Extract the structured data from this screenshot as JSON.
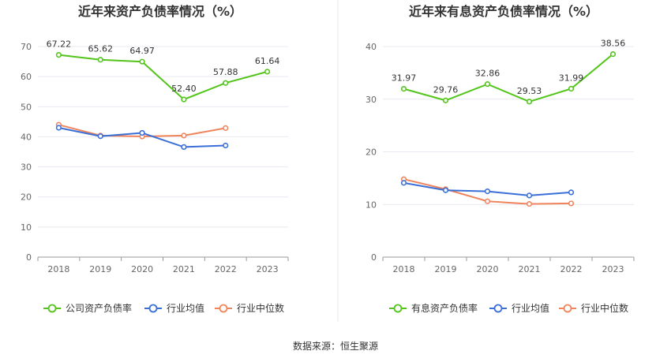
{
  "source": "数据来源：恒生聚源",
  "colors": {
    "green": "#52c41a",
    "blue": "#3a6fd8",
    "orange": "#f0845c",
    "grid": "#e6e9f0",
    "axis": "#999999"
  },
  "chart_data": [
    {
      "type": "line",
      "title": "近年来资产负债率情况（%）",
      "categories": [
        "2018",
        "2019",
        "2020",
        "2021",
        "2022",
        "2023"
      ],
      "ylim": [
        0,
        70
      ],
      "yticks": [
        0,
        10,
        20,
        30,
        40,
        50,
        60,
        70
      ],
      "series": [
        {
          "name": "公司资产负债率",
          "color": "green",
          "labeled": true,
          "labels": [
            "67.22",
            "65.62",
            "64.97",
            "52.40",
            "57.88",
            "61.64"
          ],
          "values": [
            67.22,
            65.62,
            64.97,
            52.4,
            57.88,
            61.64
          ]
        },
        {
          "name": "行业均值",
          "color": "blue",
          "labeled": false,
          "values": [
            43.0,
            40.2,
            41.3,
            36.6,
            37.1,
            null
          ]
        },
        {
          "name": "行业中位数",
          "color": "orange",
          "labeled": false,
          "values": [
            44.0,
            40.4,
            40.1,
            40.4,
            42.9,
            null
          ]
        }
      ]
    },
    {
      "type": "line",
      "title": "近年来有息资产负债率情况（%）",
      "categories": [
        "2018",
        "2019",
        "2020",
        "2021",
        "2022",
        "2023"
      ],
      "ylim": [
        0,
        40
      ],
      "yticks": [
        0,
        10,
        20,
        30,
        40
      ],
      "series": [
        {
          "name": "有息资产负债率",
          "color": "green",
          "labeled": true,
          "labels": [
            "31.97",
            "29.76",
            "32.86",
            "29.53",
            "31.99",
            "38.56"
          ],
          "values": [
            31.97,
            29.76,
            32.86,
            29.53,
            31.99,
            38.56
          ]
        },
        {
          "name": "行业均值",
          "color": "blue",
          "labeled": false,
          "values": [
            14.1,
            12.7,
            12.5,
            11.7,
            12.3,
            null
          ]
        },
        {
          "name": "行业中位数",
          "color": "orange",
          "labeled": false,
          "values": [
            14.8,
            12.9,
            10.6,
            10.1,
            10.2,
            null
          ]
        }
      ]
    }
  ]
}
